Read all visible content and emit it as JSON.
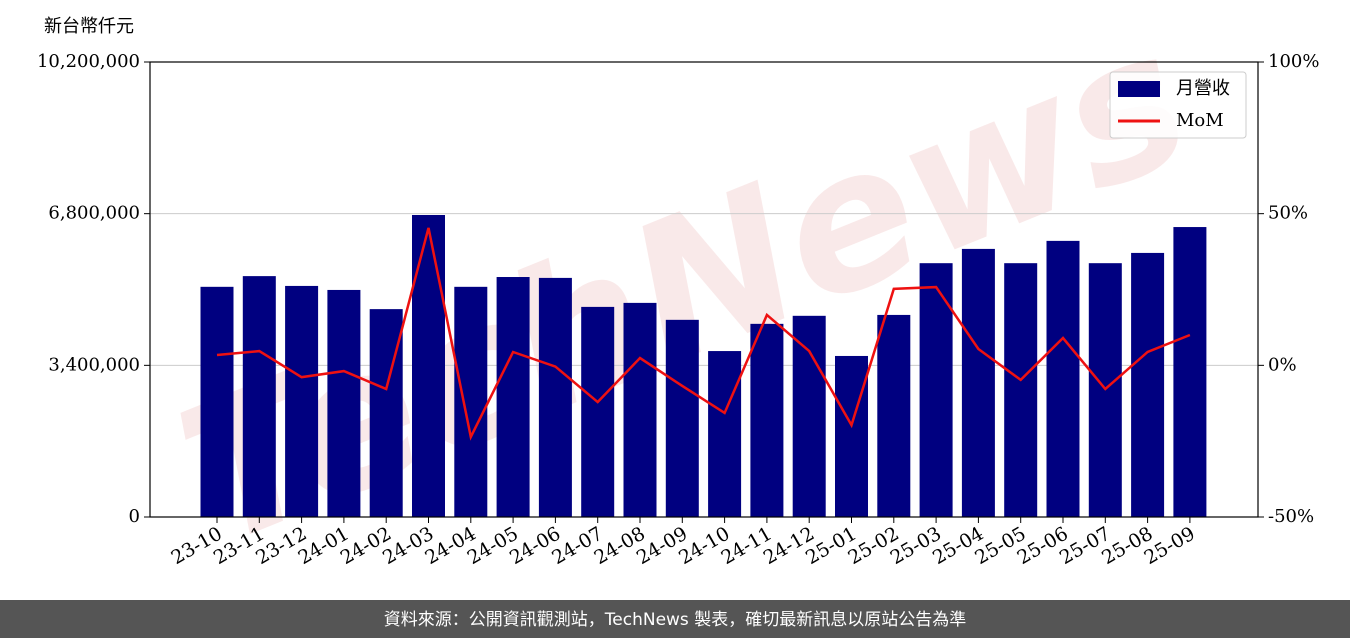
{
  "chart_data": {
    "type": "bar_line",
    "y_axis_label": "新台幣仟元",
    "watermark": "TechNews",
    "categories": [
      "23-10",
      "23-11",
      "23-12",
      "24-01",
      "24-02",
      "24-03",
      "24-04",
      "24-05",
      "24-06",
      "24-07",
      "24-08",
      "24-09",
      "24-10",
      "24-11",
      "24-12",
      "25-01",
      "25-02",
      "25-03",
      "25-04",
      "25-05",
      "25-06",
      "25-07",
      "25-08",
      "25-09"
    ],
    "series": [
      {
        "name": "月營收",
        "type": "bar",
        "color": "#000080",
        "axis": "y",
        "values": [
          5160000,
          5400000,
          5180000,
          5090000,
          4660000,
          6770000,
          5160000,
          5380000,
          5360000,
          4710000,
          4800000,
          4420000,
          3720000,
          4330000,
          4510000,
          3610000,
          4530000,
          5690000,
          6010000,
          5690000,
          6190000,
          5690000,
          5920000,
          6500000
        ]
      },
      {
        "name": "MoM",
        "type": "line",
        "color": "#ee1111",
        "axis": "y2",
        "values": [
          3.4,
          4.7,
          -3.9,
          -1.9,
          -7.8,
          45.3,
          -23.6,
          4.4,
          -0.4,
          -12.1,
          2.4,
          -6.8,
          -15.7,
          16.6,
          4.7,
          -19.7,
          25.2,
          25.8,
          5.4,
          -4.8,
          9.0,
          -7.8,
          4.4,
          10.0
        ]
      }
    ],
    "ylim": [
      0,
      10200000
    ],
    "yticks": [
      0,
      {
        "value": 3400000,
        "label": "3,400,000"
      },
      {
        "value": 6800000,
        "label": "6,800,000"
      },
      {
        "value": 10200000,
        "label": "10,200,000"
      }
    ],
    "y2lim": [
      -50,
      100
    ],
    "y2ticks": [
      {
        "value": -50,
        "label": "-50%"
      },
      {
        "value": 0,
        "label": "0%"
      },
      {
        "value": 50,
        "label": "50%"
      },
      {
        "value": 100,
        "label": "100%"
      }
    ],
    "grid": true,
    "legend_position": "upper right",
    "footer": "資料來源：公開資訊觀測站，TechNews 製表，確切最新訊息以原站公告為準"
  }
}
